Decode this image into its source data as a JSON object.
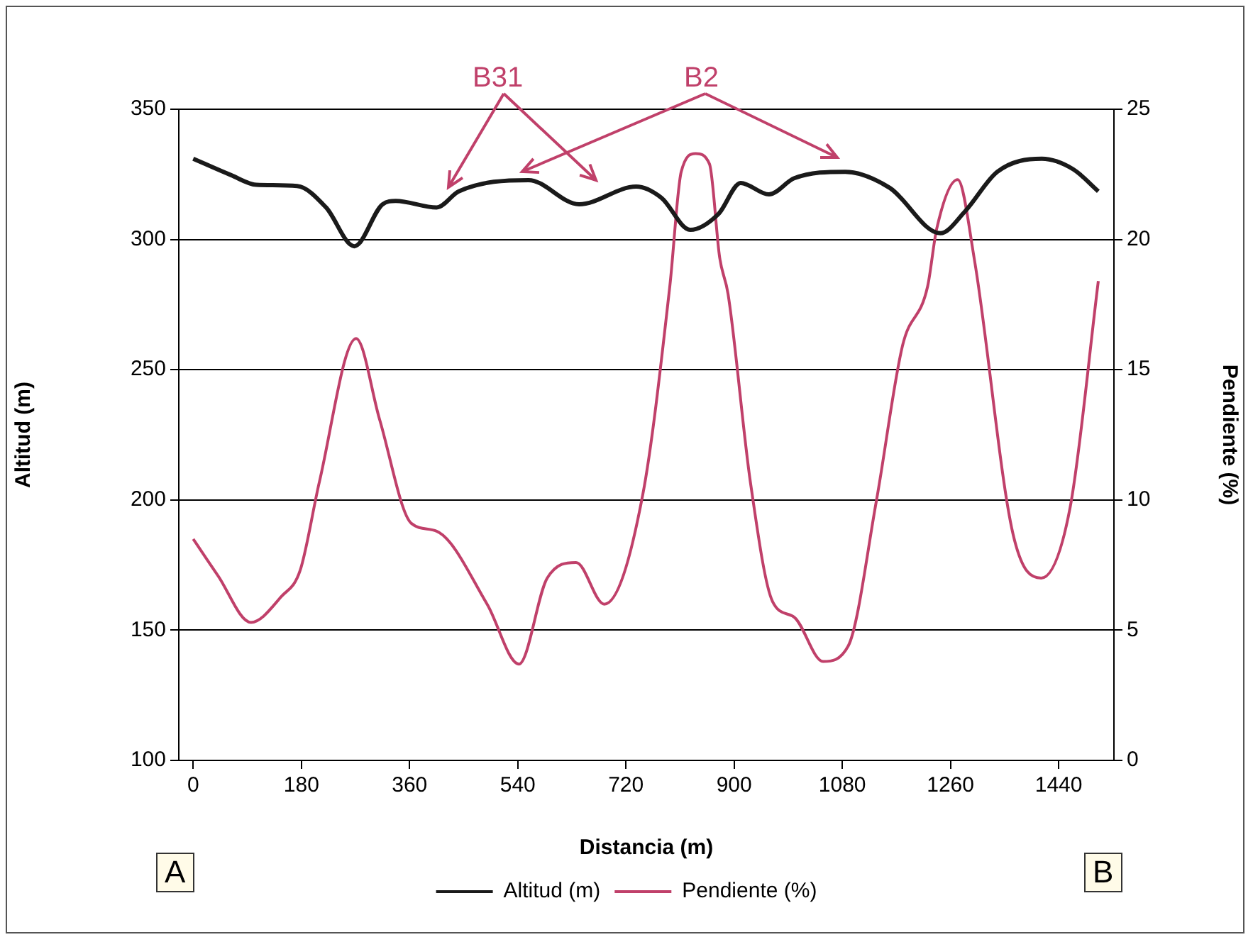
{
  "chart_data": {
    "type": "line",
    "xlabel": "Distancia (m)",
    "ylabel": "Altitud (m)",
    "y2label": "Pendiente (%)",
    "xlim": [
      -24,
      1532
    ],
    "xticks": [
      0,
      180,
      360,
      540,
      720,
      900,
      1080,
      1260,
      1440
    ],
    "ylim": [
      100,
      350
    ],
    "yticks": [
      100,
      150,
      200,
      250,
      300,
      350
    ],
    "y2lim": [
      0,
      25
    ],
    "y2ticks": [
      0,
      5,
      10,
      15,
      20,
      25
    ],
    "grid": "y",
    "legend": "bottom",
    "marker": "none",
    "line_style": "solid",
    "annotations": [
      "B31",
      "B2",
      "A",
      "B"
    ],
    "series": [
      {
        "name": "Altitud (m)",
        "color": "#1a1a1a",
        "x": [
          0,
          63,
          105,
          173,
          221,
          268,
          315,
          337,
          405,
          442,
          558,
          642,
          737,
          779,
          827,
          874,
          911,
          958,
          1000,
          1085,
          1159,
          1243,
          1285,
          1338,
          1412,
          1464,
          1506
        ],
        "values": [
          331,
          324.7,
          321,
          320.5,
          312.3,
          297.4,
          313.5,
          314.8,
          312.3,
          318.5,
          322.8,
          313.5,
          320.3,
          316,
          303.7,
          309.8,
          321.7,
          317.3,
          323.5,
          326,
          319.8,
          302.4,
          311,
          326,
          331,
          327,
          318.5
        ]
      },
      {
        "name": "Pendiente (%)",
        "color": "#c0406a",
        "axis": "y2",
        "x": [
          0,
          41,
          96,
          147,
          178,
          210,
          271,
          310,
          363,
          405,
          489,
          542,
          589,
          637,
          684,
          748,
          793,
          812,
          836,
          859,
          876,
          890,
          927,
          964,
          1000,
          1048,
          1090,
          1137,
          1180,
          1222,
          1237,
          1272,
          1300,
          1364,
          1411,
          1459,
          1506
        ],
        "values": [
          8.5,
          7.1,
          5.3,
          6.3,
          7.3,
          10.7,
          16.2,
          13.1,
          9.1,
          8.8,
          6.0,
          3.7,
          7.0,
          7.6,
          6.0,
          10.2,
          18.2,
          22.6,
          23.3,
          22.9,
          19.3,
          17.9,
          10.7,
          6.1,
          5.5,
          3.8,
          4.4,
          10.0,
          15.9,
          18.2,
          20.4,
          22.3,
          19.2,
          8.7,
          7.0,
          9.7,
          18.4
        ]
      }
    ]
  }
}
